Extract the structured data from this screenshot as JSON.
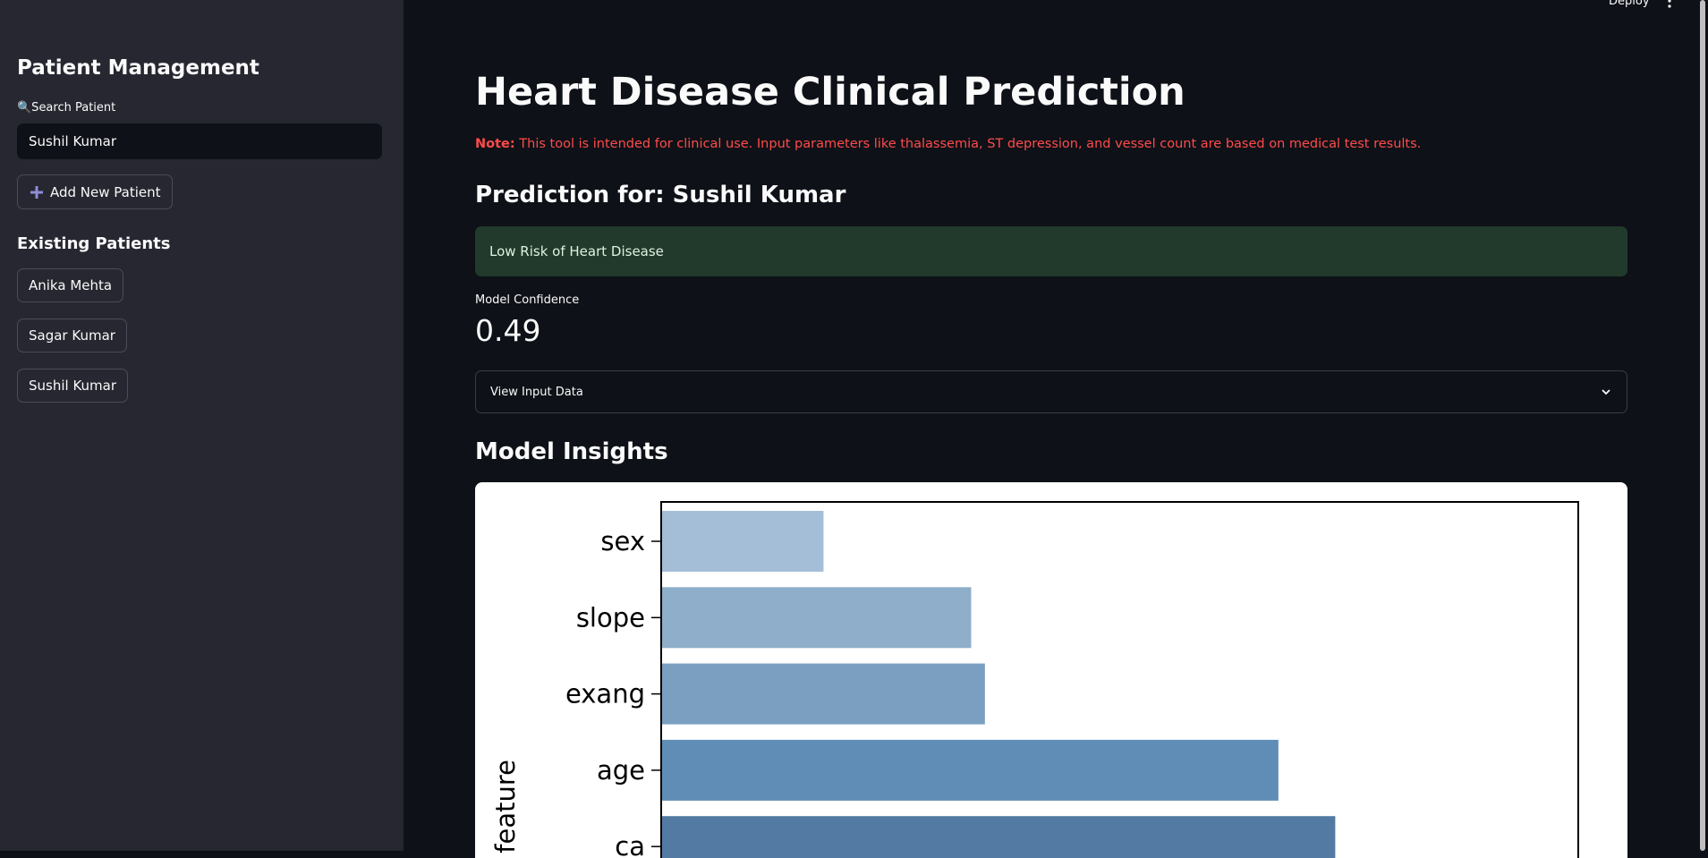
{
  "header": {
    "deploy": "Deploy"
  },
  "sidebar": {
    "title": "Patient Management",
    "search_label": "🔍Search Patient",
    "search_value": "Sushil Kumar",
    "add_button": "Add New Patient",
    "existing_title": "Existing Patients",
    "patients": [
      "Anika Mehta",
      "Sagar Kumar",
      "Sushil Kumar"
    ]
  },
  "main": {
    "title": "Heart Disease Clinical Prediction",
    "note_label": "Note:",
    "note_text": "This tool is intended for clinical use. Input parameters like thalassemia, ST depression, and vessel count are based on medical test results.",
    "prediction_heading": "Prediction for: Sushil Kumar",
    "result": "Low Risk of Heart Disease",
    "confidence_label": "Model Confidence",
    "confidence_value": 0.49,
    "expander": "View Input Data",
    "insights_heading": "Model Insights"
  },
  "chart_data": {
    "type": "bar",
    "orientation": "horizontal",
    "y_label": "feature",
    "categories": [
      "sex",
      "slope",
      "exang",
      "age",
      "ca"
    ],
    "values": [
      0.177,
      0.338,
      0.353,
      0.673,
      0.735
    ],
    "colors": [
      "#a5bed7",
      "#8eaec9",
      "#7a9fc0",
      "#5f8db5",
      "#537aa3"
    ],
    "xlim": [
      0,
      1
    ]
  }
}
